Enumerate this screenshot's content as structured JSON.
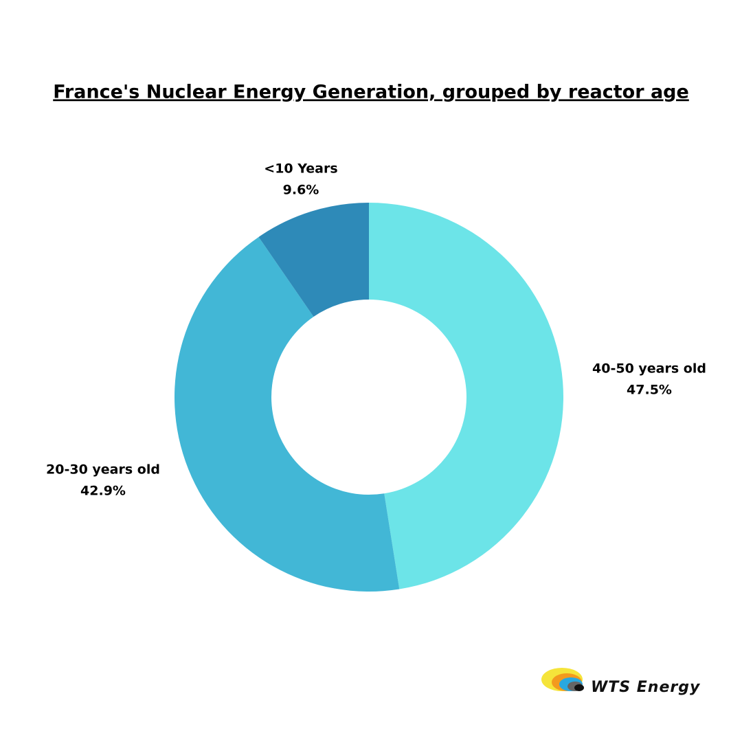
{
  "chart_data": {
    "type": "donut",
    "title": "France's Nuclear Energy Generation, grouped by reactor age",
    "categories": [
      "40-50 years old",
      "20-30 years old",
      "<10 Years"
    ],
    "values": [
      47.5,
      42.9,
      9.6
    ],
    "value_labels": [
      "47.5%",
      "42.9%",
      "9.6%"
    ],
    "colors": [
      "#6ce4e8",
      "#42b7d6",
      "#2e8ab8"
    ]
  },
  "brand": "WTS Energy"
}
